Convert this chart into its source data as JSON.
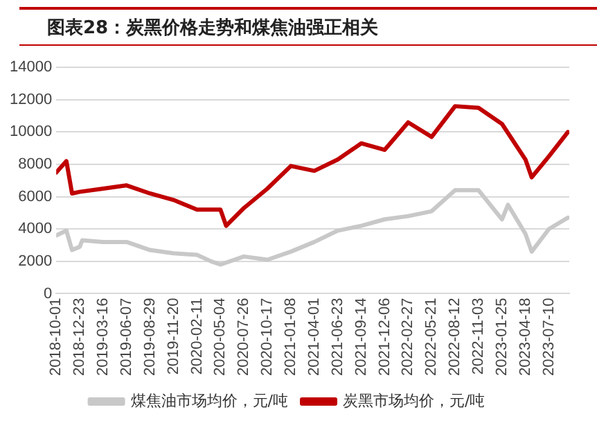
{
  "chart_data": {
    "type": "line",
    "title": "图表28：炭黑价格走势和煤焦油强正相关",
    "series": [
      {
        "name": "煤焦油市场均价，元/吨",
        "color": "#c8c8c8",
        "x": [
          "2018-10-01",
          "2018-11-06",
          "2018-11-26",
          "2018-12-23",
          "2019-01-01",
          "2019-03-16",
          "2019-06-07",
          "2019-08-29",
          "2019-11-20",
          "2020-02-11",
          "2020-04-01",
          "2020-05-04",
          "2020-07-26",
          "2020-10-17",
          "2021-01-08",
          "2021-04-01",
          "2021-06-23",
          "2021-09-14",
          "2021-12-06",
          "2022-02-27",
          "2022-05-21",
          "2022-08-12",
          "2022-11-03",
          "2023-01-25",
          "2023-02-15",
          "2023-04-18",
          "2023-05-10",
          "2023-07-10",
          "2023-09-15"
        ],
        "values": [
          3600,
          3900,
          2700,
          2900,
          3300,
          3200,
          3200,
          2700,
          2500,
          2400,
          2000,
          1800,
          2300,
          2100,
          2600,
          3200,
          3900,
          4200,
          4600,
          4800,
          5100,
          6400,
          6400,
          4600,
          5500,
          3700,
          2600,
          4000,
          4700
        ]
      },
      {
        "name": "炭黑市场均价，元/吨",
        "color": "#c00000",
        "x": [
          "2018-10-01",
          "2018-11-06",
          "2018-11-26",
          "2018-12-23",
          "2019-03-16",
          "2019-06-07",
          "2019-08-29",
          "2019-11-20",
          "2020-02-11",
          "2020-05-04",
          "2020-05-24",
          "2020-07-26",
          "2020-10-17",
          "2021-01-08",
          "2021-04-01",
          "2021-06-23",
          "2021-09-14",
          "2021-12-06",
          "2022-02-27",
          "2022-05-21",
          "2022-08-12",
          "2022-11-03",
          "2023-01-25",
          "2023-04-18",
          "2023-05-10",
          "2023-07-10",
          "2023-09-15"
        ],
        "values": [
          7500,
          8200,
          6200,
          6300,
          6500,
          6700,
          6200,
          5800,
          5200,
          5200,
          4200,
          5300,
          6500,
          7900,
          7600,
          8300,
          9300,
          8900,
          10600,
          9700,
          11600,
          11500,
          10500,
          8300,
          7200,
          8500,
          10000
        ]
      }
    ],
    "xlim": [
      "2018-10-01",
      "2023-09-20"
    ],
    "xticks": [
      "2018-10-01",
      "2018-12-23",
      "2019-03-16",
      "2019-06-07",
      "2019-08-29",
      "2019-11-20",
      "2020-02-11",
      "2020-05-04",
      "2020-07-26",
      "2020-10-17",
      "2021-01-08",
      "2021-04-01",
      "2021-06-23",
      "2021-09-14",
      "2021-12-06",
      "2022-02-27",
      "2022-05-21",
      "2022-08-12",
      "2022-11-03",
      "2023-01-25",
      "2023-04-18",
      "2023-07-10"
    ],
    "ylim": [
      0,
      14000
    ],
    "yticks": [
      0,
      2000,
      4000,
      6000,
      8000,
      10000,
      12000,
      14000
    ],
    "grid": "y",
    "legend": "bottom",
    "marker": "none",
    "line_style": "solid"
  }
}
